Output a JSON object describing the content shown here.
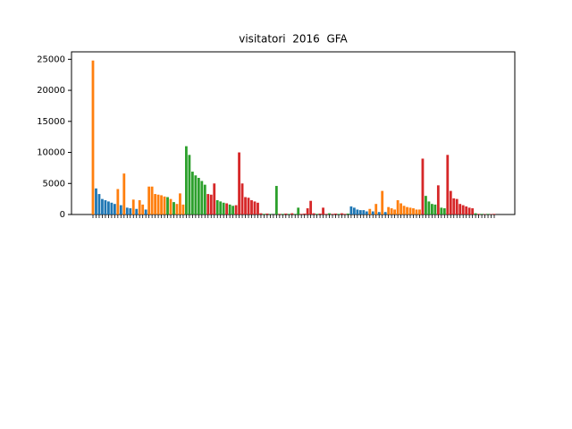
{
  "chart_data": {
    "type": "bar",
    "title": "visitatori  2016  GFA",
    "categories": [
      null,
      null,
      null,
      null,
      null,
      null,
      null,
      null,
      null,
      null,
      null,
      null,
      null,
      null,
      null,
      null,
      null,
      null,
      null,
      null,
      null,
      null,
      null,
      null,
      null,
      null,
      null,
      null,
      null,
      null,
      null,
      null,
      null,
      null,
      null,
      null,
      null,
      null,
      null,
      null,
      null,
      null,
      null,
      null,
      null,
      null,
      null,
      null,
      null,
      null,
      null,
      null,
      null,
      null,
      null,
      null,
      null,
      null,
      null,
      null,
      null,
      null,
      null,
      null,
      null,
      null,
      null,
      null,
      null,
      null,
      null,
      null,
      null,
      null,
      null,
      null,
      null,
      null,
      null,
      null,
      null,
      null,
      null,
      null,
      null,
      null,
      null,
      null,
      null,
      null,
      null,
      null,
      null,
      null,
      null,
      null,
      null,
      null,
      null,
      null,
      null,
      null,
      null,
      null,
      null,
      null,
      null,
      null,
      null,
      null,
      null,
      null,
      null,
      null,
      null,
      null,
      null,
      null,
      null,
      null,
      null,
      null,
      null,
      null,
      null,
      null,
      null,
      null,
      null,
      null
    ],
    "values": [
      24800,
      4200,
      3300,
      2500,
      2300,
      2100,
      1900,
      1700,
      4100,
      1500,
      6600,
      1100,
      1000,
      2400,
      900,
      2300,
      1600,
      800,
      4500,
      4500,
      3300,
      3200,
      3100,
      2900,
      2800,
      2500,
      2000,
      1700,
      3400,
      1600,
      11000,
      9600,
      6900,
      6300,
      5900,
      5400,
      4800,
      3300,
      3200,
      5000,
      2300,
      2100,
      1900,
      1800,
      1600,
      1400,
      1500,
      10000,
      5000,
      2800,
      2700,
      2300,
      2100,
      1900,
      200,
      100,
      150,
      100,
      0,
      4600,
      100,
      100,
      150,
      100,
      200,
      100,
      1100,
      100,
      150,
      1000,
      2200,
      200,
      100,
      150,
      1100,
      100,
      200,
      100,
      150,
      100,
      200,
      100,
      150,
      1300,
      1100,
      800,
      700,
      700,
      500,
      900,
      500,
      1700,
      400,
      3800,
      400,
      1200,
      1000,
      800,
      2300,
      1800,
      1400,
      1200,
      1100,
      1000,
      800,
      800,
      9000,
      3000,
      2100,
      1700,
      1600,
      4700,
      1100,
      1000,
      9600,
      3800,
      2600,
      2500,
      1700,
      1500,
      1300,
      1100,
      1000,
      200,
      100,
      100,
      50,
      100,
      50,
      100
    ],
    "colors": [
      "#ff7f0e",
      "#1f77b4",
      "#1f77b4",
      "#1f77b4",
      "#1f77b4",
      "#1f77b4",
      "#1f77b4",
      "#1f77b4",
      "#ff7f0e",
      "#1f77b4",
      "#ff7f0e",
      "#1f77b4",
      "#1f77b4",
      "#ff7f0e",
      "#1f77b4",
      "#ff7f0e",
      "#ff7f0e",
      "#1f77b4",
      "#ff7f0e",
      "#ff7f0e",
      "#ff7f0e",
      "#ff7f0e",
      "#ff7f0e",
      "#ff7f0e",
      "#2ca02c",
      "#ff7f0e",
      "#2ca02c",
      "#ff7f0e",
      "#ff7f0e",
      "#ff7f0e",
      "#2ca02c",
      "#2ca02c",
      "#2ca02c",
      "#2ca02c",
      "#2ca02c",
      "#2ca02c",
      "#2ca02c",
      "#d62728",
      "#d62728",
      "#d62728",
      "#2ca02c",
      "#2ca02c",
      "#2ca02c",
      "#d62728",
      "#2ca02c",
      "#2ca02c",
      "#d62728",
      "#d62728",
      "#d62728",
      "#d62728",
      "#d62728",
      "#d62728",
      "#d62728",
      "#d62728",
      "#d62728",
      "#2ca02c",
      "#d62728",
      "#2ca02c",
      "#2ca02c",
      "#2ca02c",
      "#d62728",
      "#2ca02c",
      "#d62728",
      "#2ca02c",
      "#d62728",
      "#2ca02c",
      "#2ca02c",
      "#d62728",
      "#d62728",
      "#d62728",
      "#d62728",
      "#d62728",
      "#2ca02c",
      "#d62728",
      "#d62728",
      "#d62728",
      "#2ca02c",
      "#d62728",
      "#d62728",
      "#2ca02c",
      "#d62728",
      "#d62728",
      "#2ca02c",
      "#1f77b4",
      "#1f77b4",
      "#1f77b4",
      "#1f77b4",
      "#1f77b4",
      "#1f77b4",
      "#ff7f0e",
      "#1f77b4",
      "#ff7f0e",
      "#1f77b4",
      "#ff7f0e",
      "#1f77b4",
      "#ff7f0e",
      "#ff7f0e",
      "#ff7f0e",
      "#ff7f0e",
      "#ff7f0e",
      "#ff7f0e",
      "#ff7f0e",
      "#ff7f0e",
      "#ff7f0e",
      "#ff7f0e",
      "#ff7f0e",
      "#d62728",
      "#2ca02c",
      "#2ca02c",
      "#2ca02c",
      "#2ca02c",
      "#d62728",
      "#2ca02c",
      "#2ca02c",
      "#d62728",
      "#d62728",
      "#d62728",
      "#d62728",
      "#d62728",
      "#d62728",
      "#d62728",
      "#d62728",
      "#d62728",
      "#2ca02c",
      "#d62728",
      "#2ca02c",
      "#d62728",
      "#2ca02c",
      "#d62728",
      "#d62728"
    ],
    "ylim": [
      0,
      26200
    ],
    "yticks": [
      0,
      5000,
      10000,
      15000,
      20000,
      25000
    ]
  }
}
